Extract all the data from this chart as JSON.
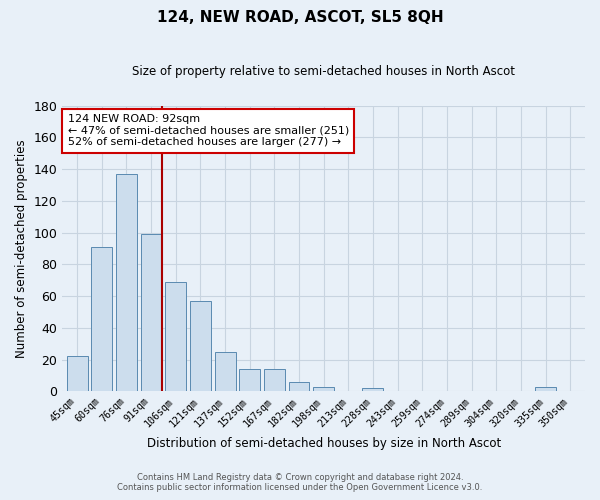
{
  "title": "124, NEW ROAD, ASCOT, SL5 8QH",
  "subtitle": "Size of property relative to semi-detached houses in North Ascot",
  "xlabel": "Distribution of semi-detached houses by size in North Ascot",
  "ylabel": "Number of semi-detached properties",
  "footnote1": "Contains HM Land Registry data © Crown copyright and database right 2024.",
  "footnote2": "Contains public sector information licensed under the Open Government Licence v3.0.",
  "bar_labels": [
    "45sqm",
    "60sqm",
    "76sqm",
    "91sqm",
    "106sqm",
    "121sqm",
    "137sqm",
    "152sqm",
    "167sqm",
    "182sqm",
    "198sqm",
    "213sqm",
    "228sqm",
    "243sqm",
    "259sqm",
    "274sqm",
    "289sqm",
    "304sqm",
    "320sqm",
    "335sqm",
    "350sqm"
  ],
  "bar_values": [
    22,
    91,
    137,
    99,
    69,
    57,
    25,
    14,
    14,
    6,
    3,
    0,
    2,
    0,
    0,
    0,
    0,
    0,
    0,
    3,
    0
  ],
  "highlight_index": 3,
  "bar_color": "#ccdded",
  "bar_edge_color": "#5a8ab0",
  "highlight_line_color": "#aa0000",
  "ylim": [
    0,
    180
  ],
  "yticks": [
    0,
    20,
    40,
    60,
    80,
    100,
    120,
    140,
    160,
    180
  ],
  "annotation_title": "124 NEW ROAD: 92sqm",
  "annotation_line1": "← 47% of semi-detached houses are smaller (251)",
  "annotation_line2": "52% of semi-detached houses are larger (277) →",
  "annotation_box_color": "#ffffff",
  "annotation_box_edge": "#cc0000",
  "background_color": "#e8f0f8",
  "plot_bg_color": "#e8f0f8",
  "grid_color": "#c8d4e0"
}
